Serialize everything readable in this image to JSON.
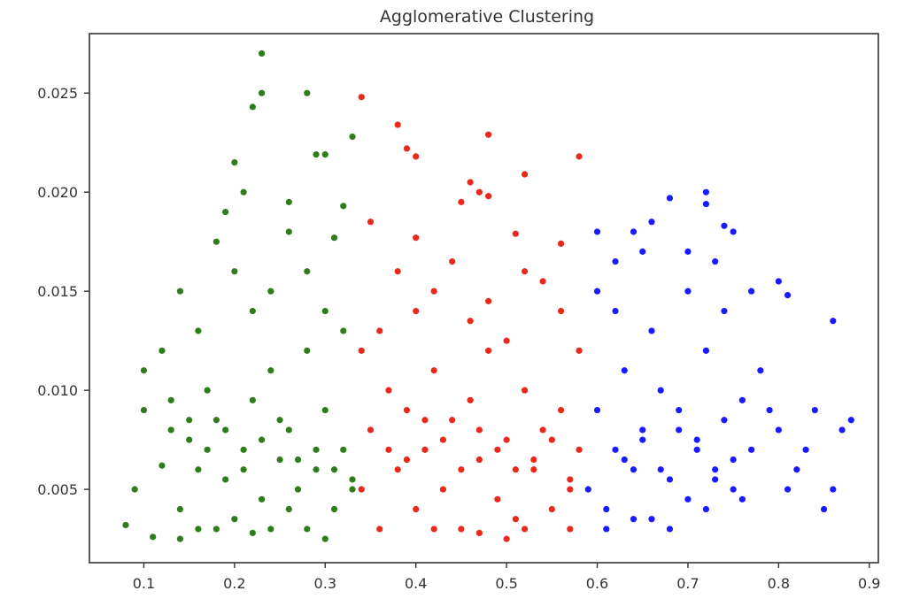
{
  "chart_data": {
    "type": "scatter",
    "title": "Agglomerative Clustering",
    "xlabel": "",
    "ylabel": "",
    "xlim": [
      0.04,
      0.91
    ],
    "ylim": [
      0.0013,
      0.028
    ],
    "x_ticks": [
      0.1,
      0.2,
      0.3,
      0.4,
      0.5,
      0.6,
      0.7,
      0.8,
      0.9
    ],
    "x_tick_labels": [
      "0.1",
      "0.2",
      "0.3",
      "0.4",
      "0.5",
      "0.6",
      "0.7",
      "0.8",
      "0.9"
    ],
    "y_ticks": [
      0.005,
      0.01,
      0.015,
      0.02,
      0.025
    ],
    "y_tick_labels": [
      "0.005",
      "0.010",
      "0.015",
      "0.020",
      "0.025"
    ],
    "grid": false,
    "legend": "none",
    "series": [
      {
        "color": "#2e7d1a",
        "points": [
          [
            0.08,
            0.0032
          ],
          [
            0.09,
            0.005
          ],
          [
            0.1,
            0.009
          ],
          [
            0.11,
            0.0026
          ],
          [
            0.12,
            0.0062
          ],
          [
            0.13,
            0.008
          ],
          [
            0.14,
            0.004
          ],
          [
            0.15,
            0.0075
          ],
          [
            0.16,
            0.006
          ],
          [
            0.17,
            0.01
          ],
          [
            0.18,
            0.0085
          ],
          [
            0.19,
            0.0055
          ],
          [
            0.2,
            0.0035
          ],
          [
            0.21,
            0.007
          ],
          [
            0.22,
            0.0095
          ],
          [
            0.23,
            0.0045
          ],
          [
            0.24,
            0.011
          ],
          [
            0.25,
            0.0065
          ],
          [
            0.26,
            0.008
          ],
          [
            0.27,
            0.005
          ],
          [
            0.28,
            0.012
          ],
          [
            0.29,
            0.006
          ],
          [
            0.3,
            0.009
          ],
          [
            0.31,
            0.004
          ],
          [
            0.32,
            0.007
          ],
          [
            0.33,
            0.0055
          ],
          [
            0.1,
            0.011
          ],
          [
            0.12,
            0.012
          ],
          [
            0.14,
            0.015
          ],
          [
            0.16,
            0.013
          ],
          [
            0.18,
            0.0175
          ],
          [
            0.2,
            0.016
          ],
          [
            0.22,
            0.014
          ],
          [
            0.24,
            0.015
          ],
          [
            0.26,
            0.018
          ],
          [
            0.28,
            0.016
          ],
          [
            0.3,
            0.014
          ],
          [
            0.32,
            0.013
          ],
          [
            0.19,
            0.019
          ],
          [
            0.2,
            0.0215
          ],
          [
            0.21,
            0.02
          ],
          [
            0.22,
            0.0243
          ],
          [
            0.23,
            0.027
          ],
          [
            0.23,
            0.025
          ],
          [
            0.26,
            0.0195
          ],
          [
            0.28,
            0.025
          ],
          [
            0.29,
            0.0219
          ],
          [
            0.3,
            0.0219
          ],
          [
            0.33,
            0.0228
          ],
          [
            0.32,
            0.0193
          ],
          [
            0.31,
            0.0177
          ],
          [
            0.13,
            0.0095
          ],
          [
            0.15,
            0.0085
          ],
          [
            0.17,
            0.007
          ],
          [
            0.19,
            0.008
          ],
          [
            0.21,
            0.006
          ],
          [
            0.23,
            0.0075
          ],
          [
            0.25,
            0.0085
          ],
          [
            0.27,
            0.0065
          ],
          [
            0.29,
            0.007
          ],
          [
            0.31,
            0.006
          ],
          [
            0.33,
            0.005
          ],
          [
            0.3,
            0.0025
          ],
          [
            0.28,
            0.003
          ],
          [
            0.26,
            0.004
          ],
          [
            0.24,
            0.003
          ],
          [
            0.22,
            0.0028
          ],
          [
            0.18,
            0.003
          ],
          [
            0.16,
            0.003
          ],
          [
            0.14,
            0.0025
          ]
        ]
      },
      {
        "color": "#e8291c",
        "points": [
          [
            0.34,
            0.005
          ],
          [
            0.35,
            0.008
          ],
          [
            0.36,
            0.003
          ],
          [
            0.37,
            0.01
          ],
          [
            0.38,
            0.006
          ],
          [
            0.39,
            0.009
          ],
          [
            0.4,
            0.004
          ],
          [
            0.41,
            0.007
          ],
          [
            0.42,
            0.011
          ],
          [
            0.43,
            0.005
          ],
          [
            0.44,
            0.0085
          ],
          [
            0.45,
            0.003
          ],
          [
            0.46,
            0.0095
          ],
          [
            0.47,
            0.0065
          ],
          [
            0.48,
            0.012
          ],
          [
            0.49,
            0.0045
          ],
          [
            0.5,
            0.0075
          ],
          [
            0.51,
            0.0035
          ],
          [
            0.52,
            0.01
          ],
          [
            0.53,
            0.006
          ],
          [
            0.54,
            0.008
          ],
          [
            0.55,
            0.004
          ],
          [
            0.56,
            0.009
          ],
          [
            0.57,
            0.0055
          ],
          [
            0.58,
            0.007
          ],
          [
            0.34,
            0.012
          ],
          [
            0.36,
            0.013
          ],
          [
            0.38,
            0.016
          ],
          [
            0.4,
            0.014
          ],
          [
            0.42,
            0.015
          ],
          [
            0.44,
            0.0165
          ],
          [
            0.46,
            0.0135
          ],
          [
            0.48,
            0.0145
          ],
          [
            0.5,
            0.0125
          ],
          [
            0.52,
            0.016
          ],
          [
            0.54,
            0.0155
          ],
          [
            0.56,
            0.014
          ],
          [
            0.58,
            0.012
          ],
          [
            0.34,
            0.0248
          ],
          [
            0.38,
            0.0234
          ],
          [
            0.39,
            0.0222
          ],
          [
            0.4,
            0.0218
          ],
          [
            0.48,
            0.0229
          ],
          [
            0.52,
            0.0209
          ],
          [
            0.46,
            0.0205
          ],
          [
            0.47,
            0.02
          ],
          [
            0.48,
            0.0198
          ],
          [
            0.45,
            0.0195
          ],
          [
            0.58,
            0.0218
          ],
          [
            0.35,
            0.0185
          ],
          [
            0.4,
            0.0177
          ],
          [
            0.51,
            0.0179
          ],
          [
            0.56,
            0.0174
          ],
          [
            0.37,
            0.007
          ],
          [
            0.39,
            0.0065
          ],
          [
            0.41,
            0.0085
          ],
          [
            0.43,
            0.0075
          ],
          [
            0.45,
            0.006
          ],
          [
            0.47,
            0.008
          ],
          [
            0.49,
            0.007
          ],
          [
            0.51,
            0.006
          ],
          [
            0.53,
            0.0065
          ],
          [
            0.55,
            0.0075
          ],
          [
            0.57,
            0.005
          ],
          [
            0.42,
            0.003
          ],
          [
            0.47,
            0.0028
          ],
          [
            0.52,
            0.003
          ],
          [
            0.57,
            0.003
          ],
          [
            0.5,
            0.0025
          ]
        ]
      },
      {
        "color": "#1a1aff",
        "points": [
          [
            0.59,
            0.005
          ],
          [
            0.6,
            0.009
          ],
          [
            0.61,
            0.004
          ],
          [
            0.62,
            0.007
          ],
          [
            0.63,
            0.011
          ],
          [
            0.64,
            0.006
          ],
          [
            0.65,
            0.008
          ],
          [
            0.66,
            0.0035
          ],
          [
            0.67,
            0.01
          ],
          [
            0.68,
            0.0055
          ],
          [
            0.69,
            0.009
          ],
          [
            0.7,
            0.0045
          ],
          [
            0.71,
            0.0075
          ],
          [
            0.72,
            0.012
          ],
          [
            0.73,
            0.006
          ],
          [
            0.74,
            0.0085
          ],
          [
            0.75,
            0.005
          ],
          [
            0.76,
            0.0095
          ],
          [
            0.77,
            0.007
          ],
          [
            0.78,
            0.011
          ],
          [
            0.8,
            0.008
          ],
          [
            0.82,
            0.006
          ],
          [
            0.84,
            0.009
          ],
          [
            0.86,
            0.005
          ],
          [
            0.87,
            0.008
          ],
          [
            0.88,
            0.0085
          ],
          [
            0.6,
            0.018
          ],
          [
            0.62,
            0.0165
          ],
          [
            0.64,
            0.018
          ],
          [
            0.65,
            0.017
          ],
          [
            0.66,
            0.0185
          ],
          [
            0.68,
            0.0197
          ],
          [
            0.7,
            0.017
          ],
          [
            0.72,
            0.02
          ],
          [
            0.72,
            0.0194
          ],
          [
            0.73,
            0.0165
          ],
          [
            0.74,
            0.0183
          ],
          [
            0.75,
            0.018
          ],
          [
            0.6,
            0.015
          ],
          [
            0.62,
            0.014
          ],
          [
            0.66,
            0.013
          ],
          [
            0.7,
            0.015
          ],
          [
            0.74,
            0.014
          ],
          [
            0.77,
            0.015
          ],
          [
            0.8,
            0.0155
          ],
          [
            0.81,
            0.0148
          ],
          [
            0.63,
            0.0065
          ],
          [
            0.65,
            0.0075
          ],
          [
            0.67,
            0.006
          ],
          [
            0.69,
            0.008
          ],
          [
            0.71,
            0.007
          ],
          [
            0.73,
            0.0055
          ],
          [
            0.75,
            0.0065
          ],
          [
            0.79,
            0.009
          ],
          [
            0.83,
            0.007
          ],
          [
            0.85,
            0.004
          ],
          [
            0.86,
            0.0135
          ],
          [
            0.61,
            0.003
          ],
          [
            0.64,
            0.0035
          ],
          [
            0.68,
            0.003
          ],
          [
            0.72,
            0.004
          ],
          [
            0.76,
            0.0045
          ],
          [
            0.81,
            0.005
          ]
        ]
      }
    ]
  }
}
